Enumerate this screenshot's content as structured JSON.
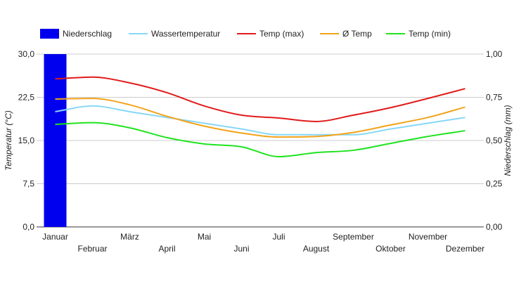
{
  "chart_data": {
    "type": "bar+line",
    "categories": [
      "Januar",
      "Februar",
      "März",
      "April",
      "Mai",
      "Juni",
      "Juli",
      "August",
      "September",
      "Oktober",
      "November",
      "Dezember"
    ],
    "bar_series": {
      "name": "Niederschlag",
      "color": "#0000ee",
      "axis": "right",
      "values": [
        1.0,
        0,
        0,
        0,
        0,
        0,
        0,
        0,
        0,
        0,
        0,
        0
      ]
    },
    "line_series": [
      {
        "name": "Wassertemperatur",
        "color": "#87d7f7",
        "values": [
          20.0,
          21.0,
          20.0,
          19.0,
          18.0,
          17.0,
          16.0,
          16.0,
          16.0,
          17.0,
          18.0,
          19.0
        ]
      },
      {
        "name": "Temp (max)",
        "color": "#e01b1b",
        "values": [
          25.7,
          26.0,
          25.0,
          23.3,
          21.0,
          19.4,
          18.9,
          18.3,
          19.4,
          20.7,
          22.3,
          24.0
        ]
      },
      {
        "name": "Ø Temp",
        "color": "#f2a31a",
        "values": [
          22.2,
          22.3,
          21.2,
          19.2,
          17.5,
          16.3,
          15.6,
          15.7,
          16.4,
          17.7,
          19.0,
          20.8
        ]
      },
      {
        "name": "Temp (min)",
        "color": "#1fe31f",
        "values": [
          17.8,
          18.1,
          17.2,
          15.5,
          14.4,
          13.9,
          12.2,
          12.9,
          13.3,
          14.5,
          15.7,
          16.7
        ]
      }
    ],
    "ylabel_left": "Temperatur (°C)",
    "ylabel_right": "Niederschlag (mm)",
    "ylim_left": [
      0,
      30
    ],
    "ylim_right": [
      0,
      1
    ],
    "yticks_left": [
      "0,0",
      "7,5",
      "15,0",
      "22,5",
      "30,0"
    ],
    "yticks_right": [
      "0,00",
      "0,25",
      "0,50",
      "0,75",
      "1,00"
    ],
    "legend_position": "top",
    "grid": true,
    "gridline_color": "#cccccc"
  }
}
